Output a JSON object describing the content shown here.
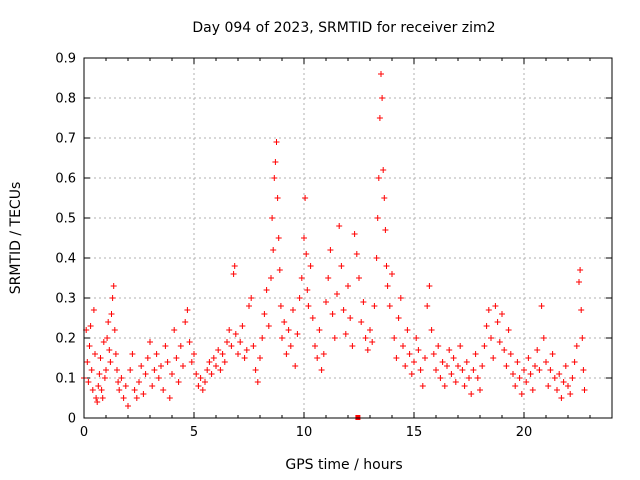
{
  "chart_data": {
    "type": "scatter",
    "title": "Day 094 of 2023, SRMTID for receiver zim2",
    "xlabel": "GPS time / hours",
    "ylabel": "SRMTID / TECUs",
    "xlim": [
      0,
      24
    ],
    "ylim": [
      0,
      0.9
    ],
    "xticks": [
      0,
      5,
      10,
      15,
      20
    ],
    "yticks": [
      0,
      0.1,
      0.2,
      0.3,
      0.4,
      0.5,
      0.6,
      0.7,
      0.8,
      0.9
    ],
    "xtick_labels": [
      "0",
      "5",
      "10",
      "15",
      "20"
    ],
    "ytick_labels": [
      "0",
      "0.1",
      "0.2",
      "0.3",
      "0.4",
      "0.5",
      "0.6",
      "0.7",
      "0.8",
      "0.9"
    ],
    "grid": true,
    "marker": "+",
    "color": "#ff0000",
    "series": [
      {
        "name": "SRMTID",
        "points": [
          [
            0.0,
            0.1
          ],
          [
            0.1,
            0.22
          ],
          [
            0.15,
            0.14
          ],
          [
            0.2,
            0.09
          ],
          [
            0.25,
            0.18
          ],
          [
            0.3,
            0.23
          ],
          [
            0.35,
            0.12
          ],
          [
            0.4,
            0.07
          ],
          [
            0.45,
            0.27
          ],
          [
            0.5,
            0.16
          ],
          [
            0.55,
            0.05
          ],
          [
            0.6,
            0.04
          ],
          [
            0.65,
            0.08
          ],
          [
            0.7,
            0.11
          ],
          [
            0.75,
            0.15
          ],
          [
            0.8,
            0.07
          ],
          [
            0.85,
            0.05
          ],
          [
            0.9,
            0.19
          ],
          [
            0.95,
            0.1
          ],
          [
            1.0,
            0.12
          ],
          [
            1.05,
            0.2
          ],
          [
            1.1,
            0.24
          ],
          [
            1.15,
            0.17
          ],
          [
            1.2,
            0.14
          ],
          [
            1.25,
            0.26
          ],
          [
            1.3,
            0.3
          ],
          [
            1.35,
            0.33
          ],
          [
            1.4,
            0.22
          ],
          [
            1.45,
            0.16
          ],
          [
            1.5,
            0.12
          ],
          [
            1.55,
            0.09
          ],
          [
            1.6,
            0.07
          ],
          [
            1.7,
            0.1
          ],
          [
            1.8,
            0.05
          ],
          [
            1.9,
            0.08
          ],
          [
            2.0,
            0.03
          ],
          [
            2.1,
            0.12
          ],
          [
            2.2,
            0.16
          ],
          [
            2.3,
            0.07
          ],
          [
            2.4,
            0.05
          ],
          [
            2.5,
            0.09
          ],
          [
            2.6,
            0.13
          ],
          [
            2.7,
            0.06
          ],
          [
            2.8,
            0.11
          ],
          [
            2.9,
            0.15
          ],
          [
            3.0,
            0.19
          ],
          [
            3.1,
            0.08
          ],
          [
            3.2,
            0.12
          ],
          [
            3.3,
            0.16
          ],
          [
            3.4,
            0.1
          ],
          [
            3.5,
            0.13
          ],
          [
            3.6,
            0.07
          ],
          [
            3.7,
            0.18
          ],
          [
            3.8,
            0.14
          ],
          [
            3.9,
            0.05
          ],
          [
            4.0,
            0.11
          ],
          [
            4.1,
            0.22
          ],
          [
            4.2,
            0.15
          ],
          [
            4.3,
            0.09
          ],
          [
            4.4,
            0.18
          ],
          [
            4.5,
            0.13
          ],
          [
            4.6,
            0.24
          ],
          [
            4.7,
            0.27
          ],
          [
            4.8,
            0.19
          ],
          [
            4.9,
            0.14
          ],
          [
            5.0,
            0.16
          ],
          [
            5.1,
            0.11
          ],
          [
            5.2,
            0.08
          ],
          [
            5.3,
            0.1
          ],
          [
            5.4,
            0.07
          ],
          [
            5.5,
            0.09
          ],
          [
            5.6,
            0.12
          ],
          [
            5.7,
            0.14
          ],
          [
            5.8,
            0.11
          ],
          [
            5.9,
            0.15
          ],
          [
            6.0,
            0.13
          ],
          [
            6.1,
            0.17
          ],
          [
            6.2,
            0.12
          ],
          [
            6.3,
            0.16
          ],
          [
            6.4,
            0.14
          ],
          [
            6.5,
            0.19
          ],
          [
            6.6,
            0.22
          ],
          [
            6.7,
            0.18
          ],
          [
            6.8,
            0.36
          ],
          [
            6.85,
            0.38
          ],
          [
            6.9,
            0.21
          ],
          [
            7.0,
            0.16
          ],
          [
            7.1,
            0.19
          ],
          [
            7.2,
            0.23
          ],
          [
            7.3,
            0.15
          ],
          [
            7.4,
            0.17
          ],
          [
            7.5,
            0.28
          ],
          [
            7.6,
            0.3
          ],
          [
            7.7,
            0.18
          ],
          [
            7.8,
            0.12
          ],
          [
            7.9,
            0.09
          ],
          [
            8.0,
            0.15
          ],
          [
            8.1,
            0.2
          ],
          [
            8.2,
            0.26
          ],
          [
            8.3,
            0.32
          ],
          [
            8.4,
            0.23
          ],
          [
            8.5,
            0.35
          ],
          [
            8.55,
            0.5
          ],
          [
            8.6,
            0.42
          ],
          [
            8.65,
            0.6
          ],
          [
            8.7,
            0.64
          ],
          [
            8.75,
            0.69
          ],
          [
            8.8,
            0.55
          ],
          [
            8.85,
            0.45
          ],
          [
            8.9,
            0.37
          ],
          [
            8.95,
            0.28
          ],
          [
            9.0,
            0.2
          ],
          [
            9.1,
            0.24
          ],
          [
            9.2,
            0.16
          ],
          [
            9.3,
            0.22
          ],
          [
            9.4,
            0.18
          ],
          [
            9.5,
            0.27
          ],
          [
            9.6,
            0.13
          ],
          [
            9.7,
            0.21
          ],
          [
            9.8,
            0.3
          ],
          [
            9.9,
            0.35
          ],
          [
            10.0,
            0.45
          ],
          [
            10.05,
            0.55
          ],
          [
            10.1,
            0.41
          ],
          [
            10.15,
            0.32
          ],
          [
            10.2,
            0.28
          ],
          [
            10.3,
            0.38
          ],
          [
            10.4,
            0.25
          ],
          [
            10.5,
            0.18
          ],
          [
            10.6,
            0.15
          ],
          [
            10.7,
            0.22
          ],
          [
            10.8,
            0.12
          ],
          [
            10.9,
            0.16
          ],
          [
            11.0,
            0.29
          ],
          [
            11.1,
            0.35
          ],
          [
            11.2,
            0.42
          ],
          [
            11.3,
            0.26
          ],
          [
            11.4,
            0.2
          ],
          [
            11.5,
            0.31
          ],
          [
            11.6,
            0.48
          ],
          [
            11.7,
            0.38
          ],
          [
            11.8,
            0.27
          ],
          [
            11.9,
            0.21
          ],
          [
            12.0,
            0.33
          ],
          [
            12.1,
            0.25
          ],
          [
            12.2,
            0.18
          ],
          [
            12.3,
            0.46
          ],
          [
            12.4,
            0.41
          ],
          [
            12.5,
            0.35
          ],
          [
            12.6,
            0.24
          ],
          [
            12.7,
            0.29
          ],
          [
            12.8,
            0.2
          ],
          [
            12.9,
            0.17
          ],
          [
            13.0,
            0.22
          ],
          [
            13.1,
            0.19
          ],
          [
            13.2,
            0.28
          ],
          [
            13.3,
            0.4
          ],
          [
            13.35,
            0.5
          ],
          [
            13.4,
            0.6
          ],
          [
            13.45,
            0.75
          ],
          [
            13.5,
            0.86
          ],
          [
            13.55,
            0.8
          ],
          [
            13.6,
            0.62
          ],
          [
            13.65,
            0.55
          ],
          [
            13.7,
            0.47
          ],
          [
            13.75,
            0.38
          ],
          [
            13.8,
            0.33
          ],
          [
            13.9,
            0.28
          ],
          [
            14.0,
            0.36
          ],
          [
            14.1,
            0.2
          ],
          [
            14.2,
            0.15
          ],
          [
            14.3,
            0.25
          ],
          [
            14.4,
            0.3
          ],
          [
            14.5,
            0.18
          ],
          [
            14.6,
            0.13
          ],
          [
            14.7,
            0.22
          ],
          [
            14.8,
            0.16
          ],
          [
            14.9,
            0.11
          ],
          [
            15.0,
            0.14
          ],
          [
            15.1,
            0.2
          ],
          [
            15.2,
            0.17
          ],
          [
            15.3,
            0.12
          ],
          [
            15.4,
            0.08
          ],
          [
            15.5,
            0.15
          ],
          [
            15.6,
            0.28
          ],
          [
            15.7,
            0.33
          ],
          [
            15.8,
            0.22
          ],
          [
            15.9,
            0.16
          ],
          [
            16.0,
            0.12
          ],
          [
            16.1,
            0.18
          ],
          [
            16.2,
            0.1
          ],
          [
            16.3,
            0.14
          ],
          [
            16.4,
            0.08
          ],
          [
            16.5,
            0.13
          ],
          [
            16.6,
            0.17
          ],
          [
            16.7,
            0.11
          ],
          [
            16.8,
            0.15
          ],
          [
            16.9,
            0.09
          ],
          [
            17.0,
            0.13
          ],
          [
            17.1,
            0.18
          ],
          [
            17.2,
            0.12
          ],
          [
            17.3,
            0.08
          ],
          [
            17.4,
            0.14
          ],
          [
            17.5,
            0.1
          ],
          [
            17.6,
            0.06
          ],
          [
            17.7,
            0.12
          ],
          [
            17.8,
            0.16
          ],
          [
            17.9,
            0.1
          ],
          [
            18.0,
            0.07
          ],
          [
            18.1,
            0.13
          ],
          [
            18.2,
            0.18
          ],
          [
            18.3,
            0.23
          ],
          [
            18.4,
            0.27
          ],
          [
            18.5,
            0.2
          ],
          [
            18.6,
            0.15
          ],
          [
            18.7,
            0.28
          ],
          [
            18.8,
            0.24
          ],
          [
            18.9,
            0.19
          ],
          [
            19.0,
            0.26
          ],
          [
            19.1,
            0.17
          ],
          [
            19.2,
            0.13
          ],
          [
            19.3,
            0.22
          ],
          [
            19.4,
            0.16
          ],
          [
            19.5,
            0.11
          ],
          [
            19.6,
            0.08
          ],
          [
            19.7,
            0.14
          ],
          [
            19.8,
            0.1
          ],
          [
            19.9,
            0.06
          ],
          [
            20.0,
            0.12
          ],
          [
            20.1,
            0.09
          ],
          [
            20.2,
            0.15
          ],
          [
            20.3,
            0.11
          ],
          [
            20.4,
            0.07
          ],
          [
            20.5,
            0.13
          ],
          [
            20.6,
            0.17
          ],
          [
            20.7,
            0.12
          ],
          [
            20.8,
            0.28
          ],
          [
            20.9,
            0.2
          ],
          [
            21.0,
            0.14
          ],
          [
            21.1,
            0.08
          ],
          [
            21.2,
            0.12
          ],
          [
            21.3,
            0.16
          ],
          [
            21.4,
            0.1
          ],
          [
            21.5,
            0.07
          ],
          [
            21.6,
            0.11
          ],
          [
            21.7,
            0.05
          ],
          [
            21.8,
            0.09
          ],
          [
            21.9,
            0.13
          ],
          [
            22.0,
            0.08
          ],
          [
            22.1,
            0.06
          ],
          [
            22.2,
            0.1
          ],
          [
            22.3,
            0.14
          ],
          [
            22.4,
            0.18
          ],
          [
            22.5,
            0.34
          ],
          [
            22.55,
            0.37
          ],
          [
            22.6,
            0.27
          ],
          [
            22.65,
            0.2
          ],
          [
            22.7,
            0.12
          ],
          [
            22.75,
            0.07
          ]
        ]
      }
    ],
    "zero_points": [
      [
        12.45,
        0.0
      ]
    ]
  }
}
